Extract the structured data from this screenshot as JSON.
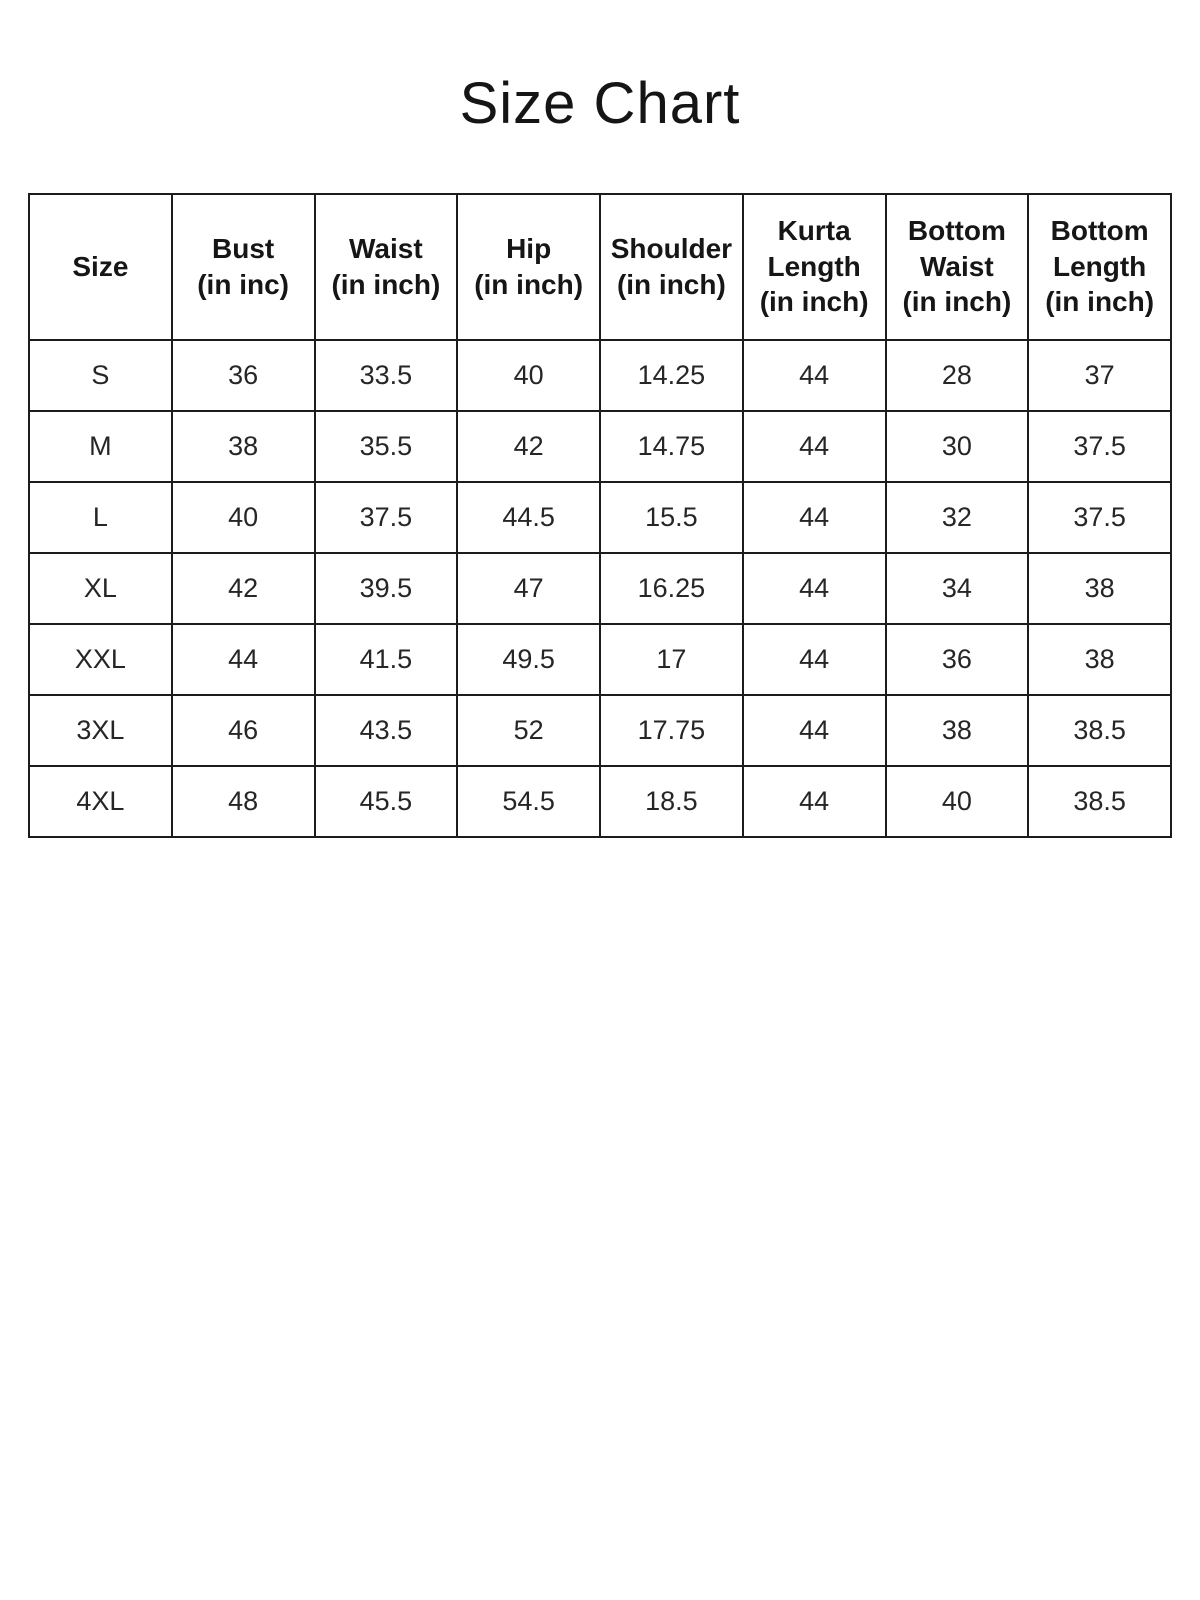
{
  "title": "Size Chart",
  "table": {
    "columns": [
      {
        "label": "Size",
        "sub": ""
      },
      {
        "label": "Bust",
        "sub": "(in inc)"
      },
      {
        "label": "Waist",
        "sub": "(in inch)"
      },
      {
        "label": "Hip",
        "sub": "(in inch)"
      },
      {
        "label": "Shoulder",
        "sub": "(in inch)"
      },
      {
        "label": "Kurta Length",
        "sub": "(in inch)"
      },
      {
        "label": "Bottom Waist",
        "sub": "(in inch)"
      },
      {
        "label": "Bottom Length",
        "sub": "(in inch)"
      }
    ],
    "rows": [
      [
        "S",
        "36",
        "33.5",
        "40",
        "14.25",
        "44",
        "28",
        "37"
      ],
      [
        "M",
        "38",
        "35.5",
        "42",
        "14.75",
        "44",
        "30",
        "37.5"
      ],
      [
        "L",
        "40",
        "37.5",
        "44.5",
        "15.5",
        "44",
        "32",
        "37.5"
      ],
      [
        "XL",
        "42",
        "39.5",
        "47",
        "16.25",
        "44",
        "34",
        "38"
      ],
      [
        "XXL",
        "44",
        "41.5",
        "49.5",
        "17",
        "44",
        "36",
        "38"
      ],
      [
        "3XL",
        "46",
        "43.5",
        "52",
        "17.75",
        "44",
        "38",
        "38.5"
      ],
      [
        "4XL",
        "48",
        "45.5",
        "54.5",
        "18.5",
        "44",
        "40",
        "38.5"
      ]
    ]
  },
  "colors": {
    "background": "#ffffff",
    "text": "#1d1d1d",
    "border": "#1c1c1c"
  }
}
